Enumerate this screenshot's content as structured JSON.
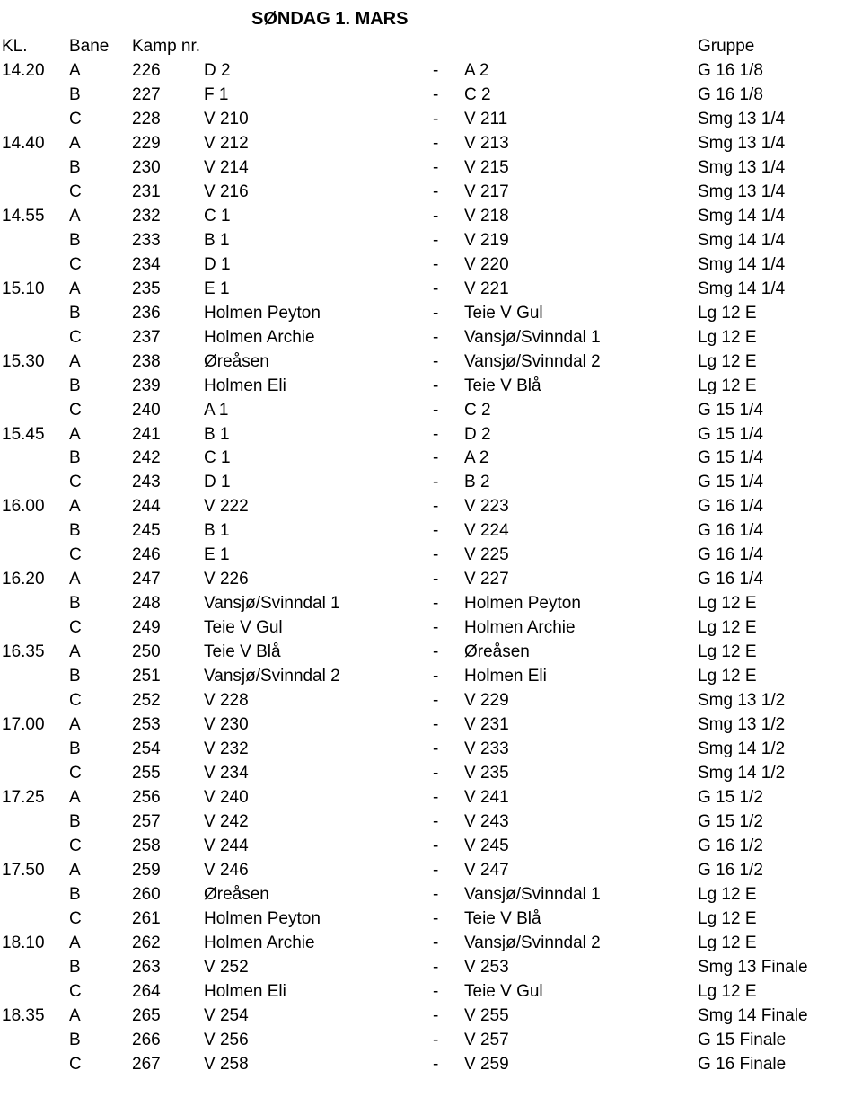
{
  "title": "SØNDAG  1. MARS",
  "headers": {
    "kl": "KL.",
    "bane": "Bane",
    "kamp": "Kamp nr.",
    "gruppe": "Gruppe"
  },
  "dash": "-",
  "rows": [
    {
      "kl": "14.20",
      "bane": "A",
      "kamp": "226",
      "t1": "D 2",
      "t2": "A 2",
      "grp": "G 16 1/8"
    },
    {
      "kl": "",
      "bane": "B",
      "kamp": "227",
      "t1": "F 1",
      "t2": "C 2",
      "grp": "G 16 1/8"
    },
    {
      "kl": "",
      "bane": "C",
      "kamp": "228",
      "t1": "V 210",
      "t2": "V 211",
      "grp": "Smg 13 1/4"
    },
    {
      "kl": "14.40",
      "bane": "A",
      "kamp": "229",
      "t1": "V 212",
      "t2": "V 213",
      "grp": "Smg 13 1/4"
    },
    {
      "kl": "",
      "bane": "B",
      "kamp": "230",
      "t1": "V 214",
      "t2": "V 215",
      "grp": "Smg 13 1/4"
    },
    {
      "kl": "",
      "bane": "C",
      "kamp": "231",
      "t1": "V 216",
      "t2": "V 217",
      "grp": "Smg 13 1/4"
    },
    {
      "kl": "14.55",
      "bane": "A",
      "kamp": "232",
      "t1": "C 1",
      "t2": "V 218",
      "grp": "Smg 14 1/4"
    },
    {
      "kl": "",
      "bane": "B",
      "kamp": "233",
      "t1": "B 1",
      "t2": "V 219",
      "grp": "Smg 14 1/4"
    },
    {
      "kl": "",
      "bane": "C",
      "kamp": "234",
      "t1": "D 1",
      "t2": "V 220",
      "grp": "Smg 14 1/4"
    },
    {
      "kl": "15.10",
      "bane": "A",
      "kamp": "235",
      "t1": "E 1",
      "t2": "V 221",
      "grp": "Smg 14 1/4"
    },
    {
      "kl": "",
      "bane": "B",
      "kamp": "236",
      "t1": "Holmen Peyton",
      "t2": "Teie V Gul",
      "grp": "Lg 12 E"
    },
    {
      "kl": "",
      "bane": "C",
      "kamp": "237",
      "t1": "Holmen Archie",
      "t2": "Vansjø/Svinndal 1",
      "grp": "Lg 12 E"
    },
    {
      "kl": "15.30",
      "bane": "A",
      "kamp": "238",
      "t1": "Øreåsen",
      "t2": "Vansjø/Svinndal 2",
      "grp": "Lg 12 E"
    },
    {
      "kl": "",
      "bane": "B",
      "kamp": "239",
      "t1": "Holmen Eli",
      "t2": "Teie V Blå",
      "grp": "Lg 12 E"
    },
    {
      "kl": "",
      "bane": "C",
      "kamp": "240",
      "t1": "A 1",
      "t2": "C 2",
      "grp": "G 15 1/4"
    },
    {
      "kl": "15.45",
      "bane": "A",
      "kamp": "241",
      "t1": "B 1",
      "t2": "D 2",
      "grp": "G 15 1/4"
    },
    {
      "kl": "",
      "bane": "B",
      "kamp": "242",
      "t1": "C 1",
      "t2": "A 2",
      "grp": "G 15 1/4"
    },
    {
      "kl": "",
      "bane": "C",
      "kamp": "243",
      "t1": "D 1",
      "t2": "B 2",
      "grp": "G 15 1/4"
    },
    {
      "kl": "16.00",
      "bane": "A",
      "kamp": "244",
      "t1": "V 222",
      "t2": "V 223",
      "grp": "G 16 1/4"
    },
    {
      "kl": "",
      "bane": "B",
      "kamp": "245",
      "t1": "B 1",
      "t2": "V 224",
      "grp": "G 16 1/4"
    },
    {
      "kl": "",
      "bane": "C",
      "kamp": "246",
      "t1": "E 1",
      "t2": "V 225",
      "grp": "G 16 1/4"
    },
    {
      "kl": "16.20",
      "bane": "A",
      "kamp": "247",
      "t1": "V 226",
      "t2": "V 227",
      "grp": "G 16 1/4"
    },
    {
      "kl": "",
      "bane": "B",
      "kamp": "248",
      "t1": "Vansjø/Svinndal 1",
      "t2": "Holmen Peyton",
      "grp": "Lg 12 E"
    },
    {
      "kl": "",
      "bane": "C",
      "kamp": "249",
      "t1": "Teie V Gul",
      "t2": "Holmen Archie",
      "grp": "Lg 12 E"
    },
    {
      "kl": "16.35",
      "bane": "A",
      "kamp": "250",
      "t1": "Teie V Blå",
      "t2": "Øreåsen",
      "grp": "Lg 12 E"
    },
    {
      "kl": "",
      "bane": "B",
      "kamp": "251",
      "t1": "Vansjø/Svinndal 2",
      "t2": "Holmen Eli",
      "grp": "Lg 12 E"
    },
    {
      "kl": "",
      "bane": "C",
      "kamp": "252",
      "t1": "V 228",
      "t2": "V 229",
      "grp": "Smg 13 1/2"
    },
    {
      "kl": "17.00",
      "bane": "A",
      "kamp": "253",
      "t1": "V 230",
      "t2": "V 231",
      "grp": "Smg 13 1/2"
    },
    {
      "kl": "",
      "bane": "B",
      "kamp": "254",
      "t1": "V 232",
      "t2": "V 233",
      "grp": "Smg 14 1/2"
    },
    {
      "kl": "",
      "bane": "C",
      "kamp": "255",
      "t1": "V 234",
      "t2": "V 235",
      "grp": "Smg 14 1/2"
    },
    {
      "kl": "17.25",
      "bane": "A",
      "kamp": "256",
      "t1": "V 240",
      "t2": "V 241",
      "grp": "G 15 1/2"
    },
    {
      "kl": "",
      "bane": "B",
      "kamp": "257",
      "t1": "V 242",
      "t2": "V 243",
      "grp": "G 15 1/2"
    },
    {
      "kl": "",
      "bane": "C",
      "kamp": "258",
      "t1": "V 244",
      "t2": "V 245",
      "grp": "G 16 1/2"
    },
    {
      "kl": "17.50",
      "bane": "A",
      "kamp": "259",
      "t1": "V 246",
      "t2": "V 247",
      "grp": "G 16 1/2"
    },
    {
      "kl": "",
      "bane": "B",
      "kamp": "260",
      "t1": "Øreåsen",
      "t2": "Vansjø/Svinndal 1",
      "grp": "Lg 12 E"
    },
    {
      "kl": "",
      "bane": "C",
      "kamp": "261",
      "t1": "Holmen Peyton",
      "t2": "Teie V Blå",
      "grp": "Lg 12 E"
    },
    {
      "kl": "18.10",
      "bane": "A",
      "kamp": "262",
      "t1": "Holmen Archie",
      "t2": "Vansjø/Svinndal 2",
      "grp": "Lg 12 E"
    },
    {
      "kl": "",
      "bane": "B",
      "kamp": "263",
      "t1": "V 252",
      "t2": "V 253",
      "grp": "Smg 13 Finale"
    },
    {
      "kl": "",
      "bane": "C",
      "kamp": "264",
      "t1": "Holmen Eli",
      "t2": "Teie V Gul",
      "grp": "Lg 12 E"
    },
    {
      "kl": "18.35",
      "bane": "A",
      "kamp": "265",
      "t1": "V 254",
      "t2": "V 255",
      "grp": "Smg 14 Finale"
    },
    {
      "kl": "",
      "bane": "B",
      "kamp": "266",
      "t1": "V 256",
      "t2": "V 257",
      "grp": "G 15 Finale"
    },
    {
      "kl": "",
      "bane": "C",
      "kamp": "267",
      "t1": "V 258",
      "t2": "V 259",
      "grp": "G 16 Finale"
    }
  ]
}
